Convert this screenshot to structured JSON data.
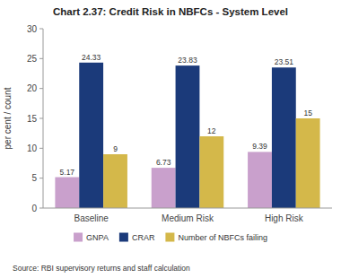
{
  "chart_data": {
    "type": "bar",
    "title": "Chart 2.37: Credit Risk in NBFCs - System Level",
    "categories": [
      "Baseline",
      "Medium Risk",
      "High Risk"
    ],
    "series": [
      {
        "name": "GNPA",
        "color": "#c9a0cc",
        "values": [
          5.17,
          6.73,
          9.39
        ]
      },
      {
        "name": "CRAR",
        "color": "#1b3a7a",
        "values": [
          24.33,
          23.83,
          23.51
        ]
      },
      {
        "name": "Number of NBFCs failing",
        "color": "#d4b84a",
        "values": [
          9,
          12,
          15
        ]
      }
    ],
    "ylabel": "per cent / count",
    "ylim": [
      0,
      30
    ],
    "yticks": [
      0,
      5,
      10,
      15,
      20,
      25,
      30
    ],
    "data_labels": true,
    "grid": false,
    "legend": "bottom",
    "source": "Source: RBI supervisory returns and staff calculation"
  }
}
